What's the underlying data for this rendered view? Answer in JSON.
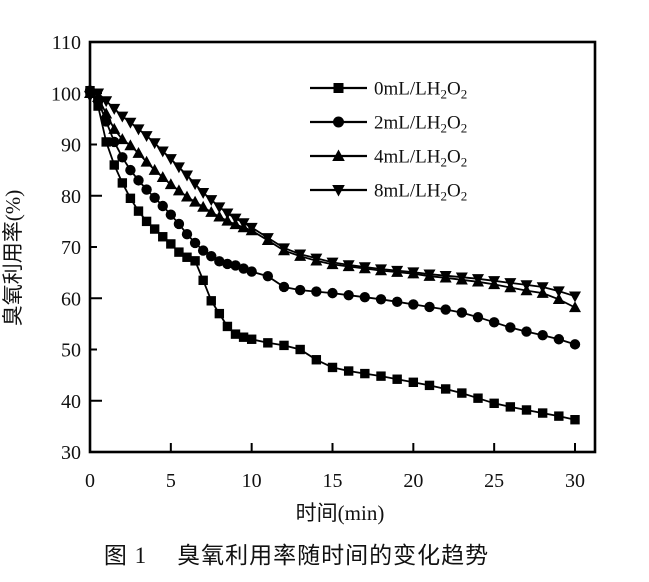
{
  "figure": {
    "caption_number": "图 1",
    "caption_title": "臭氧利用率随时间的变化趋势"
  },
  "chart_data": {
    "type": "line",
    "title": "",
    "xlabel": "时间(min)",
    "ylabel": "臭氧利用率(%)",
    "xlim": [
      0,
      31.2
    ],
    "ylim": [
      30,
      110
    ],
    "xticks": [
      0,
      5,
      10,
      15,
      20,
      25,
      30
    ],
    "yticks": [
      30,
      40,
      50,
      60,
      70,
      80,
      90,
      100,
      110
    ],
    "grid": false,
    "legend_position": "upper-right-inside",
    "colors": {
      "line": "#000000",
      "background": "#ffffff",
      "text": "#111111"
    },
    "series": [
      {
        "key": "0mL",
        "name": "0mL/LH₂O₂",
        "marker": "square",
        "points": [
          [
            0,
            100.5
          ],
          [
            0.5,
            97.5
          ],
          [
            1,
            90.5
          ],
          [
            1.5,
            86
          ],
          [
            2,
            82.5
          ],
          [
            2.5,
            79.5
          ],
          [
            3,
            77
          ],
          [
            3.5,
            75
          ],
          [
            4,
            73.5
          ],
          [
            4.5,
            72
          ],
          [
            5,
            70.6
          ],
          [
            5.5,
            69
          ],
          [
            6,
            68
          ],
          [
            6.5,
            67.3
          ],
          [
            7,
            63.5
          ],
          [
            7.5,
            59.5
          ],
          [
            8,
            57
          ],
          [
            8.5,
            54.5
          ],
          [
            9,
            53
          ],
          [
            9.5,
            52.4
          ],
          [
            10,
            52
          ],
          [
            11,
            51.3
          ],
          [
            12,
            50.8
          ],
          [
            13,
            50
          ],
          [
            14,
            48
          ],
          [
            15,
            46.5
          ],
          [
            16,
            45.8
          ],
          [
            17,
            45.3
          ],
          [
            18,
            44.8
          ],
          [
            19,
            44.2
          ],
          [
            20,
            43.6
          ],
          [
            21,
            43
          ],
          [
            22,
            42.3
          ],
          [
            23,
            41.5
          ],
          [
            24,
            40.5
          ],
          [
            25,
            39.5
          ],
          [
            26,
            38.8
          ],
          [
            27,
            38.2
          ],
          [
            28,
            37.6
          ],
          [
            29,
            37
          ],
          [
            30,
            36.3
          ]
        ]
      },
      {
        "key": "2mL",
        "name": "2mL/LH₂O₂",
        "marker": "circle",
        "points": [
          [
            0,
            100.5
          ],
          [
            0.5,
            98.5
          ],
          [
            1,
            94.5
          ],
          [
            1.5,
            90.5
          ],
          [
            2,
            87.5
          ],
          [
            2.5,
            85
          ],
          [
            3,
            83
          ],
          [
            3.5,
            81.2
          ],
          [
            4,
            79.6
          ],
          [
            4.5,
            78
          ],
          [
            5,
            76.3
          ],
          [
            5.5,
            74.5
          ],
          [
            6,
            72.5
          ],
          [
            6.5,
            70.8
          ],
          [
            7,
            69.3
          ],
          [
            7.5,
            68.2
          ],
          [
            8,
            67.2
          ],
          [
            8.5,
            66.7
          ],
          [
            9,
            66.4
          ],
          [
            9.5,
            65.8
          ],
          [
            10,
            65.2
          ],
          [
            11,
            64.3
          ],
          [
            12,
            62.2
          ],
          [
            13,
            61.6
          ],
          [
            14,
            61.3
          ],
          [
            15,
            61
          ],
          [
            16,
            60.6
          ],
          [
            17,
            60.2
          ],
          [
            18,
            59.8
          ],
          [
            19,
            59.3
          ],
          [
            20,
            58.8
          ],
          [
            21,
            58.3
          ],
          [
            22,
            57.8
          ],
          [
            23,
            57.2
          ],
          [
            24,
            56.3
          ],
          [
            25,
            55.3
          ],
          [
            26,
            54.3
          ],
          [
            27,
            53.5
          ],
          [
            28,
            52.8
          ],
          [
            29,
            52
          ],
          [
            30,
            51
          ]
        ]
      },
      {
        "key": "4mL",
        "name": "4mL/LH₂O₂",
        "marker": "triangle-up",
        "points": [
          [
            0,
            100
          ],
          [
            0.5,
            99.2
          ],
          [
            1,
            96
          ],
          [
            1.5,
            93
          ],
          [
            2,
            91
          ],
          [
            2.5,
            89.8
          ],
          [
            3,
            88.3
          ],
          [
            3.5,
            86.6
          ],
          [
            4,
            85
          ],
          [
            4.5,
            83.6
          ],
          [
            5,
            82.2
          ],
          [
            5.5,
            81
          ],
          [
            6,
            79.8
          ],
          [
            6.5,
            78.8
          ],
          [
            7,
            77.8
          ],
          [
            7.5,
            76.8
          ],
          [
            8,
            75.9
          ],
          [
            8.5,
            75.1
          ],
          [
            9,
            74.4
          ],
          [
            9.5,
            73.8
          ],
          [
            10,
            73.2
          ],
          [
            11,
            71.3
          ],
          [
            12,
            69.3
          ],
          [
            13,
            68.2
          ],
          [
            14,
            67.3
          ],
          [
            15,
            66.6
          ],
          [
            16,
            66.2
          ],
          [
            17,
            65.8
          ],
          [
            18,
            65.4
          ],
          [
            19,
            65.1
          ],
          [
            20,
            64.8
          ],
          [
            21,
            64.3
          ],
          [
            22,
            64
          ],
          [
            23,
            63.6
          ],
          [
            24,
            63.2
          ],
          [
            25,
            62.7
          ],
          [
            26,
            62.1
          ],
          [
            27,
            61.5
          ],
          [
            28,
            61
          ],
          [
            29,
            59.8
          ],
          [
            30,
            58.2
          ]
        ]
      },
      {
        "key": "8mL",
        "name": "8mL/LH₂O₂",
        "marker": "triangle-down",
        "points": [
          [
            0,
            99.5
          ],
          [
            0.5,
            100
          ],
          [
            1,
            98.5
          ],
          [
            1.5,
            97
          ],
          [
            2,
            95.5
          ],
          [
            2.5,
            94.3
          ],
          [
            3,
            93
          ],
          [
            3.5,
            91.7
          ],
          [
            4,
            90.3
          ],
          [
            4.5,
            88.7
          ],
          [
            5,
            87.2
          ],
          [
            5.5,
            85.6
          ],
          [
            6,
            84
          ],
          [
            6.5,
            82.3
          ],
          [
            7,
            80.6
          ],
          [
            7.5,
            79.2
          ],
          [
            8,
            77.8
          ],
          [
            8.5,
            76.6
          ],
          [
            9,
            75.6
          ],
          [
            9.5,
            74.7
          ],
          [
            10,
            73.8
          ],
          [
            11,
            71.8
          ],
          [
            12,
            69.8
          ],
          [
            13,
            68.6
          ],
          [
            14,
            67.8
          ],
          [
            15,
            67
          ],
          [
            16,
            66.5
          ],
          [
            17,
            66.1
          ],
          [
            18,
            65.7
          ],
          [
            19,
            65.4
          ],
          [
            20,
            65.1
          ],
          [
            21,
            64.7
          ],
          [
            22,
            64.4
          ],
          [
            23,
            64.1
          ],
          [
            24,
            63.8
          ],
          [
            25,
            63.4
          ],
          [
            26,
            63
          ],
          [
            27,
            62.6
          ],
          [
            28,
            62.2
          ],
          [
            29,
            61.4
          ],
          [
            30,
            60.4
          ]
        ]
      }
    ]
  }
}
